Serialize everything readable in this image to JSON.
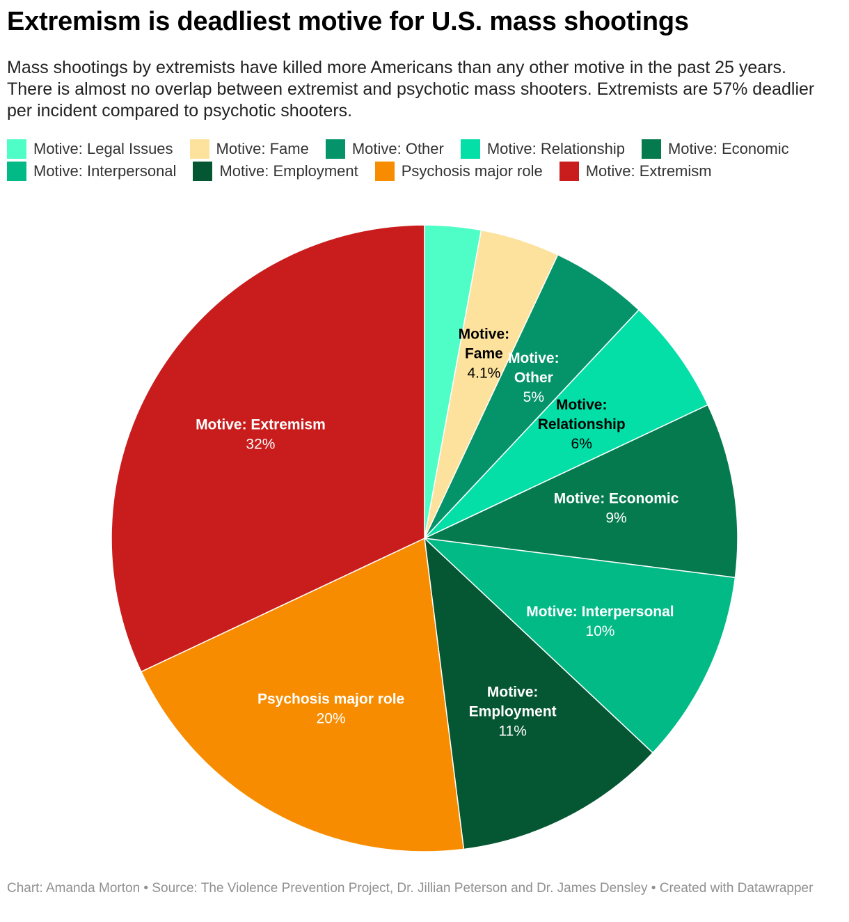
{
  "header": {
    "title": "Extremism is deadliest motive for U.S. mass shootings",
    "subtitle": "Mass shootings by extremists have killed more Americans than any other motive in the past 25 years. There is almost no overlap between extremist and psychotic mass shooters. Extremists are 57% deadlier per incident compared to psychotic shooters."
  },
  "legend": [
    {
      "label": "Motive: Legal Issues",
      "color": "#4ffdc7"
    },
    {
      "label": "Motive: Fame",
      "color": "#fde29d"
    },
    {
      "label": "Motive: Other",
      "color": "#05936a"
    },
    {
      "label": "Motive: Relationship",
      "color": "#03dfa7"
    },
    {
      "label": "Motive: Economic",
      "color": "#067a4f"
    },
    {
      "label": "Motive: Interpersonal",
      "color": "#02ba86"
    },
    {
      "label": "Motive: Employment",
      "color": "#055632"
    },
    {
      "label": "Psychosis major role",
      "color": "#f88c00"
    },
    {
      "label": "Motive: Extremism",
      "color": "#c91c1c"
    }
  ],
  "chart_data": {
    "type": "pie",
    "start": "12 o'clock, clockwise",
    "slices": [
      {
        "name": "Motive: Legal Issues",
        "value": 2.9,
        "label_lines": [],
        "value_label": "",
        "color": "#4ffdc7",
        "label_color": "#ffffff"
      },
      {
        "name": "Motive: Fame",
        "value": 4.1,
        "label_lines": [
          "Motive:",
          "Fame"
        ],
        "value_label": "4.1%",
        "color": "#fde29d",
        "label_color": "#000000"
      },
      {
        "name": "Motive: Other",
        "value": 5,
        "label_lines": [
          "Motive:",
          "Other"
        ],
        "value_label": "5%",
        "color": "#05936a",
        "label_color": "#ffffff"
      },
      {
        "name": "Motive: Relationship",
        "value": 6,
        "label_lines": [
          "Motive:",
          "Relationship"
        ],
        "value_label": "6%",
        "color": "#03dfa7",
        "label_color": "#000000"
      },
      {
        "name": "Motive: Economic",
        "value": 9,
        "label_lines": [
          "Motive: Economic"
        ],
        "value_label": "9%",
        "color": "#067a4f",
        "label_color": "#ffffff"
      },
      {
        "name": "Motive: Interpersonal",
        "value": 10,
        "label_lines": [
          "Motive: Interpersonal"
        ],
        "value_label": "10%",
        "color": "#02ba86",
        "label_color": "#ffffff"
      },
      {
        "name": "Motive: Employment",
        "value": 11,
        "label_lines": [
          "Motive:",
          "Employment"
        ],
        "value_label": "11%",
        "color": "#055632",
        "label_color": "#ffffff"
      },
      {
        "name": "Psychosis major role",
        "value": 20,
        "label_lines": [
          "Psychosis major role"
        ],
        "value_label": "20%",
        "color": "#f88c00",
        "label_color": "#ffffff"
      },
      {
        "name": "Motive: Extremism",
        "value": 32,
        "label_lines": [
          "Motive: Extremism"
        ],
        "value_label": "32%",
        "color": "#c91c1c",
        "label_color": "#ffffff"
      }
    ]
  },
  "footer": {
    "credit": "Chart: Amanda Morton • Source: The Violence Prevention Project, Dr. Jillian Peterson and Dr. James Densley • Created with Datawrapper"
  }
}
